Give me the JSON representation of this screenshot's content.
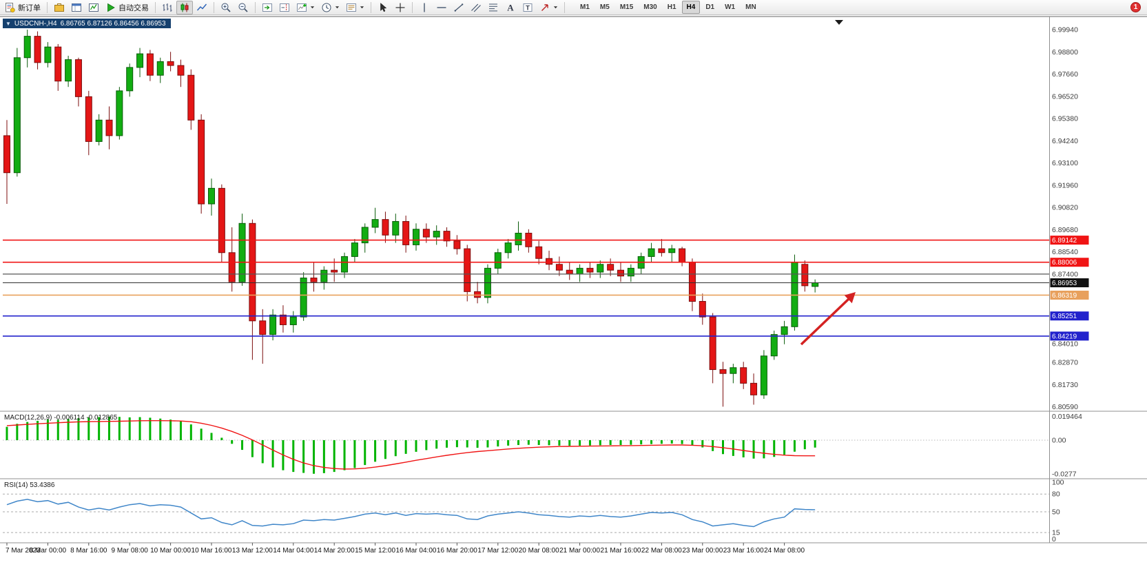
{
  "toolbar": {
    "new_order_label": "新订单",
    "auto_trading_label": "自动交易",
    "notification_count": "1",
    "timeframes": [
      "M1",
      "M5",
      "M15",
      "M30",
      "H1",
      "H4",
      "D1",
      "W1",
      "MN"
    ],
    "active_timeframe": "H4",
    "items": [
      {
        "t": "btn",
        "name": "new-order-button",
        "icon": "new-order",
        "label_key": "new_order_label"
      },
      {
        "t": "sep"
      },
      {
        "t": "btn",
        "name": "profiles-button",
        "icon": "profile"
      },
      {
        "t": "btn",
        "name": "market-watch-button",
        "icon": "window"
      },
      {
        "t": "btn",
        "name": "data-window-button",
        "icon": "navigator"
      },
      {
        "t": "btn",
        "name": "auto-trading-button",
        "icon": "play",
        "label_key": "auto_trading_label"
      },
      {
        "t": "sep"
      },
      {
        "t": "btn",
        "name": "bar-chart-button",
        "icon": "bars"
      },
      {
        "t": "btn",
        "name": "candlestick-chart-button",
        "icon": "candles",
        "active": true
      },
      {
        "t": "btn",
        "name": "line-chart-button",
        "icon": "linechart"
      },
      {
        "t": "sep"
      },
      {
        "t": "btn",
        "name": "zoom-in-button",
        "icon": "zoom-in"
      },
      {
        "t": "btn",
        "name": "zoom-out-button",
        "icon": "zoom-out"
      },
      {
        "t": "sep"
      },
      {
        "t": "btn",
        "name": "auto-scroll-button",
        "icon": "autoscroll"
      },
      {
        "t": "btn",
        "name": "chart-shift-button",
        "icon": "shift"
      },
      {
        "t": "btn",
        "name": "indicators-button",
        "icon": "indicators",
        "caret": true
      },
      {
        "t": "btn",
        "name": "periods-button",
        "icon": "clock",
        "caret": true
      },
      {
        "t": "btn",
        "name": "templates-button",
        "icon": "template",
        "caret": true
      },
      {
        "t": "sep"
      },
      {
        "t": "btn",
        "name": "cursor-button",
        "icon": "cursor"
      },
      {
        "t": "btn",
        "name": "crosshair-button",
        "icon": "crosshair"
      },
      {
        "t": "sep"
      },
      {
        "t": "btn",
        "name": "vertical-line-button",
        "icon": "vline"
      },
      {
        "t": "btn",
        "name": "horizontal-line-button",
        "icon": "hline"
      },
      {
        "t": "btn",
        "name": "trendline-button",
        "icon": "trend"
      },
      {
        "t": "btn",
        "name": "channel-button",
        "icon": "channel"
      },
      {
        "t": "btn",
        "name": "fibonacci-button",
        "icon": "fibo"
      },
      {
        "t": "btn",
        "name": "text-button",
        "icon": "textA"
      },
      {
        "t": "btn",
        "name": "text-label-button",
        "icon": "labelT"
      },
      {
        "t": "btn",
        "name": "arrows-button",
        "icon": "arrowshape",
        "caret": true
      },
      {
        "t": "sep"
      }
    ]
  },
  "chart": {
    "symbol_period": "USDCNH-,H4",
    "ohlc_text": "6.86765 6.87126 6.86456 6.86953",
    "open": "6.86765",
    "high": "6.87126",
    "low": "6.86456",
    "close": "6.86953"
  },
  "chart_data": {
    "type": "candlestick",
    "symbol": "USDCNH-",
    "timeframe": "H4",
    "up_color": "#12ad12",
    "down_color": "#e41616",
    "price_range_visible": [
      "6.80590",
      "6.99940"
    ],
    "price_axis_labels": [
      "6.99940",
      "6.98800",
      "6.97660",
      "6.96520",
      "6.95380",
      "6.94240",
      "6.93100",
      "6.91960",
      "6.90820",
      "6.89680",
      "6.88540",
      "6.87400",
      "6.84010",
      "6.82870",
      "6.81730",
      "6.80590"
    ],
    "time_axis_labels": [
      "7 Mar 2023",
      "8 Mar 00:00",
      "8 Mar 16:00",
      "9 Mar 08:00",
      "10 Mar 00:00",
      "10 Mar 16:00",
      "13 Mar 12:00",
      "14 Mar 04:00",
      "14 Mar 20:00",
      "15 Mar 12:00",
      "16 Mar 04:00",
      "16 Mar 20:00",
      "17 Mar 12:00",
      "20 Mar 08:00",
      "21 Mar 00:00",
      "21 Mar 16:00",
      "22 Mar 08:00",
      "23 Mar 00:00",
      "23 Mar 16:00",
      "24 Mar 08:00"
    ],
    "hlines": [
      {
        "price": 6.89142,
        "label": "6.89142",
        "color": "#f01414",
        "width": 1.6,
        "type": "resistance-line"
      },
      {
        "price": 6.88006,
        "label": "6.88006",
        "color": "#f01414",
        "width": 1.6,
        "type": "resistance-line"
      },
      {
        "price": 6.874,
        "label": "",
        "color": "#555555",
        "width": 1.2,
        "type": "gray-level-line"
      },
      {
        "price": 6.86953,
        "label": "6.86953",
        "color": "#2e2e2e",
        "badge": "#111111",
        "width": 1.0,
        "type": "current-price-line"
      },
      {
        "price": 6.86319,
        "label": "6.86319",
        "color": "#e8a05c",
        "width": 1.6,
        "type": "orange-level-line"
      },
      {
        "price": 6.85251,
        "label": "6.85251",
        "color": "#2222cc",
        "width": 1.6,
        "type": "support-line"
      },
      {
        "price": 6.84219,
        "label": "6.84219",
        "color": "#2222cc",
        "width": 1.6,
        "type": "support-line"
      }
    ],
    "annotation": {
      "type": "up-right-arrow",
      "color": "#d42222"
    },
    "candles_ohlc": [
      [
        6.945,
        6.953,
        6.91,
        6.926
      ],
      [
        6.926,
        6.99,
        6.924,
        6.985
      ],
      [
        6.985,
        6.9994,
        6.98,
        6.996
      ],
      [
        6.996,
        6.9985,
        6.979,
        6.9825
      ],
      [
        6.9825,
        6.993,
        6.98,
        6.9905
      ],
      [
        6.9905,
        6.992,
        6.968,
        6.973
      ],
      [
        6.973,
        6.986,
        6.97,
        6.984
      ],
      [
        6.984,
        6.985,
        6.96,
        6.965
      ],
      [
        6.965,
        6.968,
        6.935,
        6.942
      ],
      [
        6.942,
        6.956,
        6.94,
        6.953
      ],
      [
        6.953,
        6.96,
        6.938,
        6.945
      ],
      [
        6.945,
        6.97,
        6.943,
        6.968
      ],
      [
        6.968,
        6.982,
        6.965,
        6.98
      ],
      [
        6.98,
        6.99,
        6.975,
        6.987
      ],
      [
        6.987,
        6.989,
        6.973,
        6.976
      ],
      [
        6.976,
        6.985,
        6.972,
        6.983
      ],
      [
        6.983,
        6.988,
        6.978,
        6.981
      ],
      [
        6.981,
        6.984,
        6.97,
        6.976
      ],
      [
        6.976,
        6.979,
        6.948,
        6.953
      ],
      [
        6.953,
        6.956,
        6.905,
        6.91
      ],
      [
        6.91,
        6.923,
        6.904,
        6.918
      ],
      [
        6.918,
        6.92,
        6.88,
        6.885
      ],
      [
        6.885,
        6.898,
        6.865,
        6.87
      ],
      [
        6.87,
        6.905,
        6.868,
        6.9
      ],
      [
        6.9,
        6.902,
        6.83,
        6.85
      ],
      [
        6.85,
        6.856,
        6.828,
        6.843
      ],
      [
        6.843,
        6.856,
        6.84,
        6.853
      ],
      [
        6.853,
        6.858,
        6.844,
        6.848
      ],
      [
        6.848,
        6.855,
        6.844,
        6.852
      ],
      [
        6.852,
        6.875,
        6.85,
        6.872
      ],
      [
        6.872,
        6.88,
        6.865,
        6.87
      ],
      [
        6.87,
        6.878,
        6.866,
        6.876
      ],
      [
        6.876,
        6.882,
        6.87,
        6.875
      ],
      [
        6.875,
        6.885,
        6.872,
        6.883
      ],
      [
        6.883,
        6.892,
        6.88,
        6.89
      ],
      [
        6.89,
        6.9,
        6.885,
        6.898
      ],
      [
        6.898,
        6.908,
        6.895,
        6.902
      ],
      [
        6.902,
        6.906,
        6.89,
        6.894
      ],
      [
        6.894,
        6.905,
        6.89,
        6.901
      ],
      [
        6.901,
        6.904,
        6.885,
        6.889
      ],
      [
        6.889,
        6.9,
        6.886,
        6.897
      ],
      [
        6.897,
        6.9,
        6.89,
        6.893
      ],
      [
        6.893,
        6.899,
        6.889,
        6.896
      ],
      [
        6.896,
        6.898,
        6.888,
        6.891
      ],
      [
        6.891,
        6.894,
        6.884,
        6.887
      ],
      [
        6.887,
        6.889,
        6.86,
        6.865
      ],
      [
        6.865,
        6.87,
        6.859,
        6.862
      ],
      [
        6.862,
        6.879,
        6.859,
        6.877
      ],
      [
        6.877,
        6.887,
        6.874,
        6.885
      ],
      [
        6.885,
        6.892,
        6.882,
        6.89
      ],
      [
        6.889,
        6.901,
        6.886,
        6.895
      ],
      [
        6.895,
        6.897,
        6.885,
        6.888
      ],
      [
        6.888,
        6.891,
        6.879,
        6.882
      ],
      [
        6.882,
        6.886,
        6.876,
        6.879
      ],
      [
        6.879,
        6.883,
        6.873,
        6.876
      ],
      [
        6.876,
        6.88,
        6.871,
        6.874
      ],
      [
        6.874,
        6.879,
        6.87,
        6.877
      ],
      [
        6.877,
        6.88,
        6.872,
        6.875
      ],
      [
        6.875,
        6.881,
        6.872,
        6.879
      ],
      [
        6.879,
        6.882,
        6.873,
        6.876
      ],
      [
        6.876,
        6.88,
        6.87,
        6.873
      ],
      [
        6.873,
        6.879,
        6.87,
        6.877
      ],
      [
        6.877,
        6.885,
        6.874,
        6.883
      ],
      [
        6.883,
        6.89,
        6.88,
        6.887
      ],
      [
        6.887,
        6.892,
        6.883,
        6.885
      ],
      [
        6.885,
        6.889,
        6.88,
        6.887
      ],
      [
        6.887,
        6.888,
        6.878,
        6.88
      ],
      [
        6.88,
        6.882,
        6.855,
        6.86
      ],
      [
        6.86,
        6.864,
        6.848,
        6.852
      ],
      [
        6.852,
        6.854,
        6.818,
        6.825
      ],
      [
        6.825,
        6.829,
        6.806,
        6.823
      ],
      [
        6.823,
        6.828,
        6.818,
        6.826
      ],
      [
        6.826,
        6.829,
        6.815,
        6.818
      ],
      [
        6.818,
        6.823,
        6.807,
        6.812
      ],
      [
        6.812,
        6.835,
        6.81,
        6.832
      ],
      [
        6.832,
        6.845,
        6.83,
        6.843
      ],
      [
        6.843,
        6.85,
        6.838,
        6.847
      ],
      [
        6.847,
        6.884,
        6.845,
        6.88
      ],
      [
        6.879,
        6.881,
        6.865,
        6.868
      ],
      [
        6.86765,
        6.87126,
        6.86456,
        6.86953
      ]
    ]
  },
  "macd": {
    "label": "MACD(12,26,9)",
    "value_main": "-0.006114",
    "value_signal": "-0.012865",
    "axis_labels": [
      "0.019464",
      "0.00",
      "-0.0277"
    ],
    "histogram_color": "#00b400",
    "signal_color": "#f01414",
    "histogram": [
      0.011,
      0.0135,
      0.015,
      0.016,
      0.017,
      0.0168,
      0.0175,
      0.0182,
      0.0188,
      0.019,
      0.0194,
      0.0192,
      0.0188,
      0.019,
      0.0185,
      0.0178,
      0.017,
      0.0158,
      0.013,
      0.0095,
      0.006,
      0.002,
      -0.003,
      -0.008,
      -0.014,
      -0.019,
      -0.0225,
      -0.0248,
      -0.0262,
      -0.027,
      -0.0277,
      -0.0272,
      -0.0262,
      -0.0248,
      -0.023,
      -0.0205,
      -0.0178,
      -0.0155,
      -0.0132,
      -0.0113,
      -0.0096,
      -0.0082,
      -0.007,
      -0.0062,
      -0.0058,
      -0.006,
      -0.0063,
      -0.006,
      -0.0052,
      -0.0045,
      -0.004,
      -0.0038,
      -0.004,
      -0.0042,
      -0.0045,
      -0.0046,
      -0.0045,
      -0.0044,
      -0.0042,
      -0.004,
      -0.004,
      -0.0038,
      -0.0035,
      -0.0032,
      -0.003,
      -0.0028,
      -0.0032,
      -0.0045,
      -0.006,
      -0.009,
      -0.0115,
      -0.013,
      -0.0142,
      -0.0152,
      -0.015,
      -0.0138,
      -0.012,
      -0.0095,
      -0.0075,
      -0.006114
    ],
    "signal": [
      0.012,
      0.0125,
      0.013,
      0.0135,
      0.014,
      0.0144,
      0.0148,
      0.0151,
      0.0153,
      0.0154,
      0.0155,
      0.0156,
      0.0158,
      0.016,
      0.0161,
      0.0161,
      0.016,
      0.0158,
      0.0152,
      0.014,
      0.0122,
      0.01,
      0.0072,
      0.004,
      0.0002,
      -0.004,
      -0.0082,
      -0.0122,
      -0.0158,
      -0.0188,
      -0.021,
      -0.0225,
      -0.0234,
      -0.0238,
      -0.0237,
      -0.0232,
      -0.0222,
      -0.021,
      -0.0196,
      -0.0181,
      -0.0166,
      -0.0152,
      -0.0138,
      -0.0125,
      -0.0113,
      -0.0103,
      -0.0094,
      -0.0087,
      -0.008,
      -0.0073,
      -0.0067,
      -0.0062,
      -0.0058,
      -0.0055,
      -0.0052,
      -0.0051,
      -0.005,
      -0.0049,
      -0.0048,
      -0.0047,
      -0.0046,
      -0.0045,
      -0.0044,
      -0.0042,
      -0.0041,
      -0.004,
      -0.004,
      -0.0042,
      -0.0046,
      -0.0053,
      -0.0062,
      -0.0073,
      -0.0085,
      -0.0097,
      -0.0108,
      -0.0117,
      -0.0124,
      -0.0128,
      -0.0129,
      -0.0129
    ]
  },
  "rsi": {
    "label": "RSI(14)",
    "value": "53.4386",
    "line_color": "#3f86c9",
    "axis_labels": [
      "100",
      "80",
      "50",
      "15",
      "0"
    ],
    "levels": [
      80,
      50,
      15
    ],
    "values": [
      62,
      68,
      71,
      67,
      69,
      63,
      66,
      58,
      53,
      56,
      53,
      58,
      62,
      64,
      60,
      62,
      61,
      58,
      48,
      38,
      40,
      32,
      28,
      35,
      27,
      26,
      29,
      28,
      30,
      36,
      35,
      37,
      36,
      39,
      42,
      46,
      48,
      45,
      48,
      44,
      47,
      46,
      47,
      45,
      44,
      38,
      37,
      43,
      46,
      48,
      50,
      48,
      45,
      44,
      42,
      41,
      43,
      42,
      44,
      42,
      41,
      43,
      46,
      49,
      48,
      49,
      45,
      37,
      33,
      26,
      28,
      30,
      27,
      25,
      33,
      38,
      41,
      55,
      54,
      53.44
    ]
  }
}
